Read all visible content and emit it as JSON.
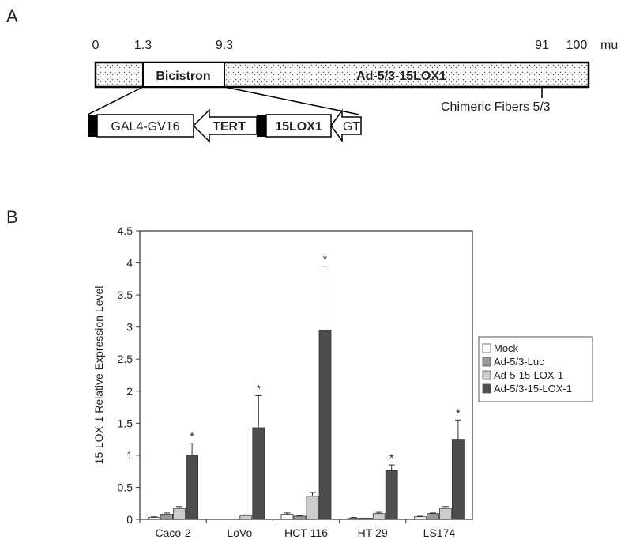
{
  "panel_a": {
    "letter": "A",
    "map_ticks": [
      {
        "label": "0",
        "mu": 0
      },
      {
        "label": "1.3",
        "mu": 1.3
      },
      {
        "label": "9.3",
        "mu": 9.3
      },
      {
        "label": "91",
        "mu": 91
      },
      {
        "label": "100",
        "mu": 100
      }
    ],
    "unit": "mu",
    "bicistron_label": "Bicistron",
    "vector_label": "Ad-5/3-15LOX1",
    "fiber_label": "Chimeric Fibers 5/3",
    "cassette": {
      "gal4": "GAL4-GV16",
      "tert": "TERT",
      "lox": "15LOX1",
      "gt": "GT"
    }
  },
  "panel_b": {
    "letter": "B"
  },
  "chart_data": {
    "type": "bar",
    "ylabel": "15-LOX-1 Relative Expression Level",
    "xlabel": "",
    "ylim": [
      0,
      4.5
    ],
    "yticks": [
      "0",
      "0.5",
      "1",
      "1.5",
      "2",
      "2.5",
      "3",
      "3.5",
      "4",
      "4.5"
    ],
    "categories": [
      "Caco-2",
      "LoVo",
      "HCT-116",
      "HT-29",
      "LS174"
    ],
    "legend_position": "right",
    "series": [
      {
        "name": "Mock",
        "color": "#ffffff",
        "values": [
          0.03,
          0.0,
          0.08,
          0.02,
          0.04
        ],
        "errors": [
          0.01,
          0.0,
          0.02,
          0.01,
          0.01
        ]
      },
      {
        "name": "Ad-5/3-Luc",
        "color": "#999999",
        "values": [
          0.08,
          0.0,
          0.05,
          0.02,
          0.09
        ],
        "errors": [
          0.02,
          0.0,
          0.01,
          0.0,
          0.01
        ]
      },
      {
        "name": "Ad-5-15-LOX-1",
        "color": "#cccccc",
        "values": [
          0.17,
          0.06,
          0.36,
          0.09,
          0.17
        ],
        "errors": [
          0.03,
          0.01,
          0.06,
          0.02,
          0.03
        ]
      },
      {
        "name": "Ad-5/3-15-LOX-1",
        "color": "#4d4d4d",
        "values": [
          1.0,
          1.43,
          2.95,
          0.76,
          1.25
        ],
        "errors": [
          0.19,
          0.5,
          1.0,
          0.09,
          0.3
        ]
      }
    ],
    "significance_marker": "*",
    "significant_series": "Ad-5/3-15-LOX-1"
  }
}
